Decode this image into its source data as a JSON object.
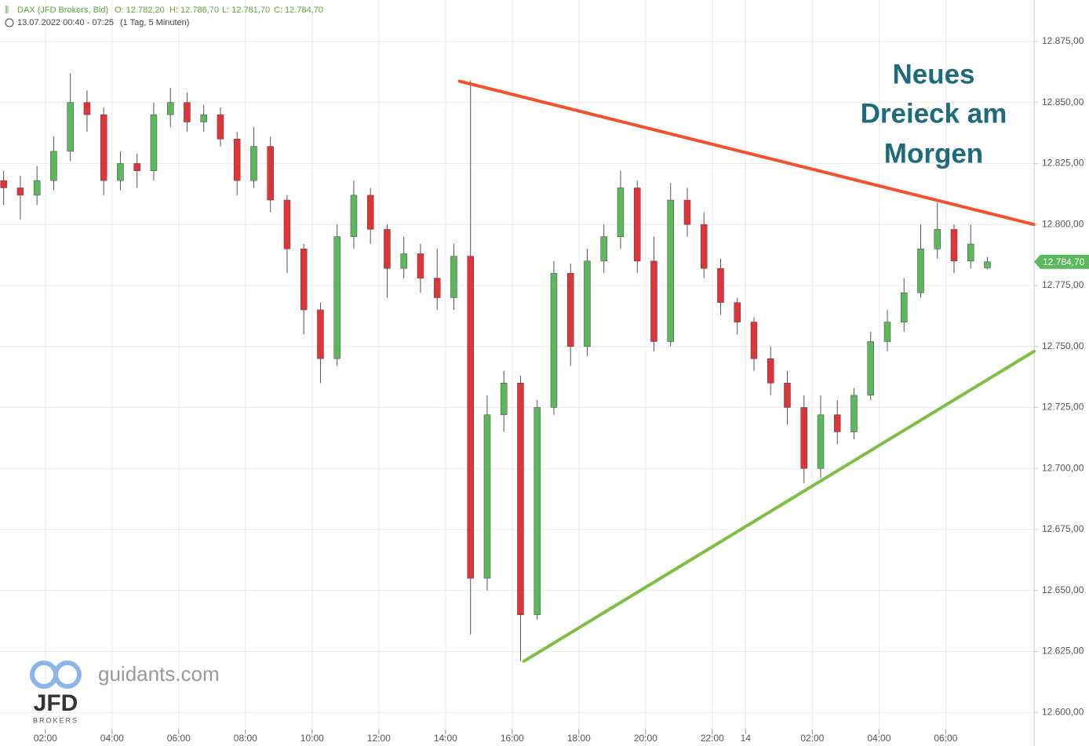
{
  "chart_data": {
    "type": "candlestick",
    "header": {
      "instrument": "DAX (JFD Brokers, Bid)",
      "open": "O: 12.782,20",
      "high": "H: 12.786,70",
      "low": "L: 12.781,70",
      "close": "C: 12.784,70",
      "range": "13.07.2022 00:40 - 07:25",
      "interval": "(1 Tag, 5 Minuten)"
    },
    "annotation": [
      "Neues",
      "Dreieck am",
      "Morgen"
    ],
    "watermark": {
      "site": "guidants.com",
      "broker": "JFD",
      "broker_sub": "BROKERS"
    },
    "last_price": {
      "value": 12784.7,
      "label": "12.784,70"
    },
    "x": [
      0.75,
      1.25,
      1.75,
      2.25,
      2.75,
      3.25,
      3.75,
      4.25,
      4.75,
      5.25,
      5.75,
      6.25,
      6.75,
      7.25,
      7.75,
      8.25,
      8.75,
      9.25,
      9.75,
      10.25,
      10.75,
      11.25,
      11.75,
      12.25,
      12.75,
      13.25,
      13.75,
      14.25,
      14.75,
      15.25,
      15.75,
      16.25,
      16.75,
      17.25,
      17.75,
      18.25,
      18.75,
      19.25,
      19.75,
      20.25,
      20.75,
      21.25,
      21.75,
      22.25,
      22.75,
      23.25,
      23.75,
      24.25,
      24.75,
      25.25,
      25.75,
      26.25,
      26.75,
      27.25,
      27.75,
      28.25,
      28.75,
      29.25,
      29.75,
      30.25
    ],
    "open": [
      12818,
      12815,
      12812,
      12818,
      12830,
      12850,
      12845,
      12818,
      12825,
      12822,
      12845,
      12850,
      12842,
      12845,
      12835,
      12818,
      12832,
      12810,
      12790,
      12765,
      12745,
      12795,
      12812,
      12798,
      12782,
      12788,
      12778,
      12770,
      12787,
      12655,
      12722,
      12735,
      12640,
      12725,
      12780,
      12750,
      12785,
      12795,
      12815,
      12785,
      12752,
      12810,
      12800,
      12782,
      12768,
      12760,
      12745,
      12735,
      12725,
      12700,
      12722,
      12715,
      12730,
      12752,
      12760,
      12772,
      12790,
      12798,
      12785,
      12782.2
    ],
    "high": [
      12822,
      12820,
      12824,
      12836,
      12862,
      12855,
      12848,
      12830,
      12829,
      12850,
      12856,
      12854,
      12849,
      12848,
      12838,
      12840,
      12836,
      12812,
      12792,
      12768,
      12800,
      12818,
      12815,
      12800,
      12795,
      12792,
      12790,
      12792,
      12859,
      12730,
      12740,
      12738,
      12728,
      12785,
      12784,
      12790,
      12800,
      12822,
      12818,
      12795,
      12817,
      12815,
      12805,
      12786,
      12770,
      12762,
      12750,
      12740,
      12730,
      12730,
      12728,
      12733,
      12756,
      12765,
      12778,
      12800,
      12809,
      12800,
      12800,
      12786.7
    ],
    "low": [
      12808,
      12802,
      12808,
      12814,
      12826,
      12838,
      12812,
      12814,
      12815,
      12818,
      12840,
      12838,
      12838,
      12832,
      12812,
      12815,
      12805,
      12780,
      12755,
      12735,
      12742,
      12790,
      12792,
      12770,
      12778,
      12772,
      12765,
      12765,
      12632,
      12650,
      12715,
      12621,
      12638,
      12722,
      12742,
      12746,
      12780,
      12790,
      12780,
      12748,
      12750,
      12795,
      12778,
      12763,
      12755,
      12740,
      12730,
      12718,
      12694,
      12696,
      12710,
      12712,
      12728,
      12748,
      12756,
      12770,
      12786,
      12780,
      12782,
      12781.7
    ],
    "close": [
      12815,
      12812,
      12818,
      12830,
      12850,
      12845,
      12818,
      12825,
      12822,
      12845,
      12850,
      12842,
      12845,
      12835,
      12818,
      12832,
      12810,
      12790,
      12765,
      12745,
      12795,
      12812,
      12798,
      12782,
      12788,
      12778,
      12770,
      12787,
      12655,
      12722,
      12735,
      12640,
      12725,
      12780,
      12750,
      12785,
      12795,
      12815,
      12785,
      12752,
      12810,
      12800,
      12782,
      12768,
      12760,
      12745,
      12735,
      12725,
      12700,
      12722,
      12715,
      12730,
      12752,
      12760,
      12772,
      12790,
      12798,
      12785,
      12792,
      12784.7
    ],
    "up_color": "#5cb85c",
    "down_color": "#e0343a",
    "trendlines": [
      {
        "color": "#f4502a",
        "x": [
          14.42,
          31.65
        ],
        "y": [
          12858.7,
          12800
        ]
      },
      {
        "color": "#7cc043",
        "x": [
          16.35,
          31.65
        ],
        "y": [
          12621,
          12748
        ]
      }
    ],
    "xlim": [
      0.64,
      31.65
    ],
    "ylim": [
      12593,
      12892
    ],
    "xticks": [
      {
        "value": 2,
        "label": "02:00"
      },
      {
        "value": 4,
        "label": "04:00"
      },
      {
        "value": 6,
        "label": "06:00"
      },
      {
        "value": 8,
        "label": "08:00"
      },
      {
        "value": 10,
        "label": "10:00"
      },
      {
        "value": 12,
        "label": "12:00"
      },
      {
        "value": 14,
        "label": "14:00"
      },
      {
        "value": 16,
        "label": "16:00"
      },
      {
        "value": 18,
        "label": "18:00"
      },
      {
        "value": 20,
        "label": "20:00"
      },
      {
        "value": 22,
        "label": "22:00"
      },
      {
        "value": 23,
        "label": "14"
      },
      {
        "value": 25,
        "label": "02:00"
      },
      {
        "value": 27,
        "label": "04:00"
      },
      {
        "value": 29,
        "label": "06:00"
      }
    ],
    "yticks": [
      {
        "value": 12600,
        "label": "12.600,00"
      },
      {
        "value": 12625,
        "label": "12.625,00"
      },
      {
        "value": 12650,
        "label": "12.650,00"
      },
      {
        "value": 12675,
        "label": "12.675,00"
      },
      {
        "value": 12700,
        "label": "12.700,00"
      },
      {
        "value": 12725,
        "label": "12.725,00"
      },
      {
        "value": 12750,
        "label": "12.750,00"
      },
      {
        "value": 12775,
        "label": "12.775,00"
      },
      {
        "value": 12800,
        "label": "12.800,00"
      },
      {
        "value": 12825,
        "label": "12.825,00"
      },
      {
        "value": 12850,
        "label": "12.850,00"
      },
      {
        "value": 12875,
        "label": "12.875,00"
      }
    ],
    "grid": true
  }
}
